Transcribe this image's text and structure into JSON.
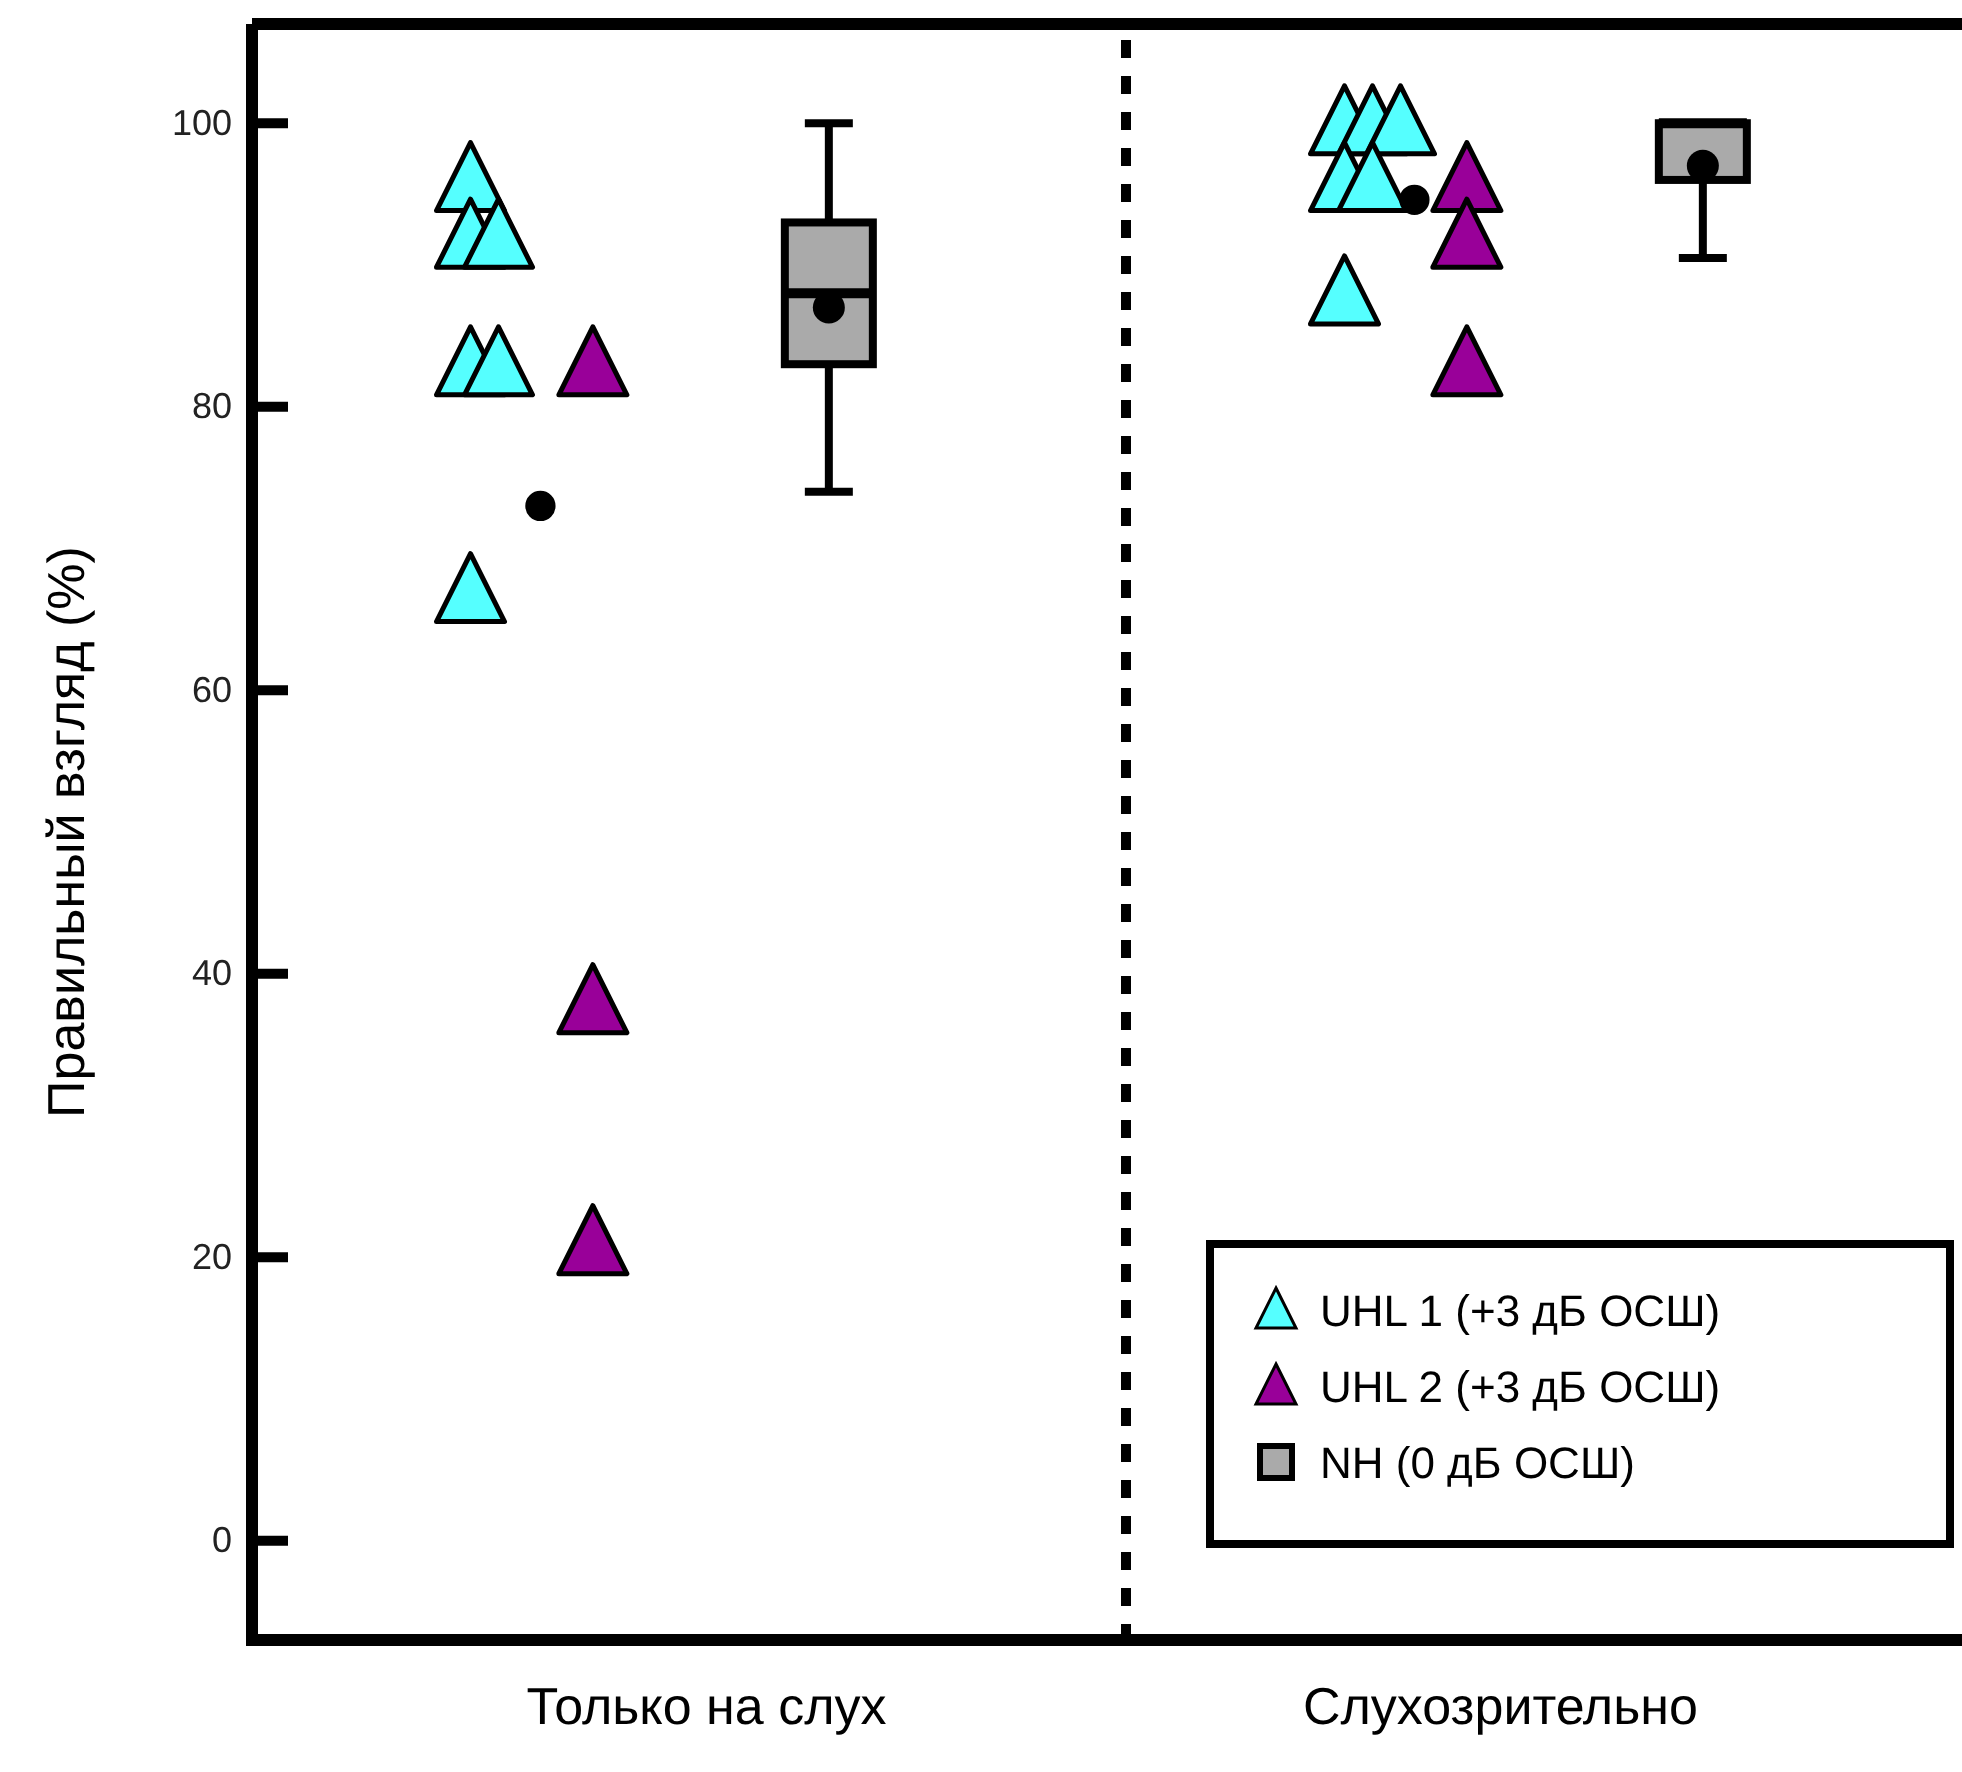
{
  "chart_data": {
    "type": "scatter",
    "ylabel": "Правильный взгляд (%)",
    "categories": [
      "Только на слух",
      "Слухозрительно"
    ],
    "ylim": [
      -7,
      107
    ],
    "yticks": [
      0,
      20,
      40,
      60,
      80,
      100
    ],
    "legend": "bottom right",
    "series": [
      {
        "name": "UHL 1 (+3 дБ ОСШ)",
        "marker": "triangle",
        "color": "#55ffff",
        "x": [
          "Только на слух",
          "Только на слух",
          "Только на слух",
          "Только на слух",
          "Только на слух",
          "Только на слух",
          "Слухозрительно",
          "Слухозрительно",
          "Слухозрительно",
          "Слухозрительно",
          "Слухозрительно",
          "Слухозрительно"
        ],
        "values": [
          96,
          92,
          92,
          83,
          83,
          67,
          100,
          100,
          100,
          96,
          96,
          88
        ]
      },
      {
        "marker": "circle",
        "color": "#000000",
        "x": [
          "Только на слух",
          "Слухозрительно"
        ],
        "values": [
          73,
          94.6
        ]
      },
      {
        "name": "UHL 2 (+3 дБ ОСШ)",
        "marker": "triangle",
        "color": "#990099",
        "x": [
          "Только на слух",
          "Только на слух",
          "Только на слух",
          "Слухозрительно",
          "Слухозрительно",
          "Слухозрительно"
        ],
        "values": [
          83,
          38,
          21,
          96,
          92,
          83
        ]
      },
      {
        "name": "NH (0 дБ ОСШ)",
        "type": "box",
        "color": "#aaaaaa",
        "boxes": [
          {
            "low": 74,
            "q1": 83,
            "median": 88,
            "q3": 93,
            "high": 100,
            "mean": 87
          },
          {
            "low": 90.5,
            "q1": 96,
            "median": 100,
            "q3": 100,
            "high": 100,
            "mean": 97
          }
        ]
      }
    ]
  }
}
